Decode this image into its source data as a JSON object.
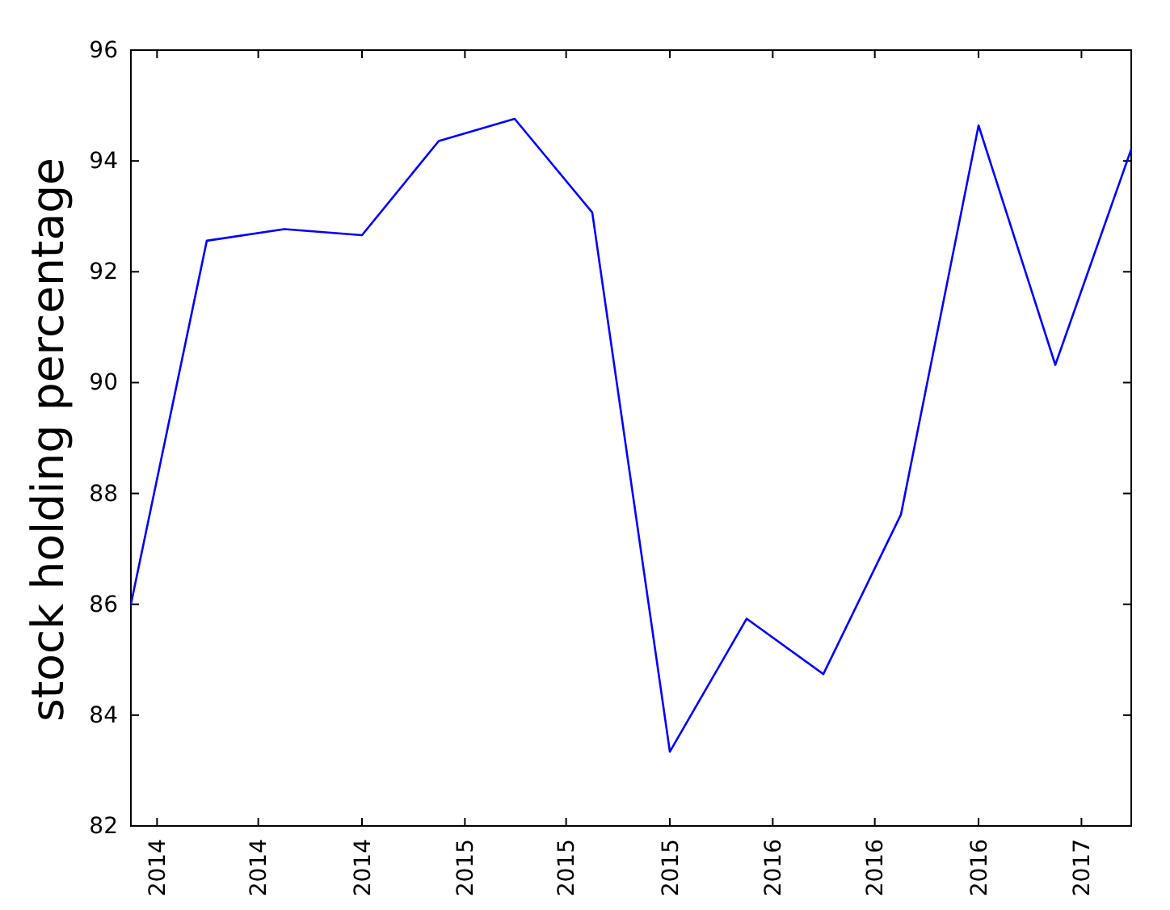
{
  "chart_data": {
    "type": "line",
    "ylabel": "stock holding percentage",
    "x": [
      "2013-12",
      "2014-03",
      "2014-06",
      "2014-09",
      "2014-12",
      "2015-03",
      "2015-06",
      "2015-09",
      "2015-12",
      "2016-03",
      "2016-06",
      "2016-09",
      "2016-12",
      "2017-03"
    ],
    "values": [
      86.0,
      92.56,
      92.77,
      92.66,
      94.36,
      94.76,
      93.07,
      83.34,
      85.74,
      84.74,
      87.62,
      94.64,
      90.32,
      94.21
    ],
    "color": "#0000ff",
    "xlim": [
      "2013-12",
      "2017-03"
    ],
    "xticks": [
      {
        "value": "2014-01",
        "label": "2014"
      },
      {
        "value": "2014-05",
        "label": "2014"
      },
      {
        "value": "2014-09",
        "label": "2014"
      },
      {
        "value": "2015-01",
        "label": "2015"
      },
      {
        "value": "2015-05",
        "label": "2015"
      },
      {
        "value": "2015-09",
        "label": "2015"
      },
      {
        "value": "2016-01",
        "label": "2016"
      },
      {
        "value": "2016-05",
        "label": "2016"
      },
      {
        "value": "2016-09",
        "label": "2016"
      },
      {
        "value": "2017-01",
        "label": "2017"
      }
    ],
    "ylim": [
      82,
      96
    ],
    "yticks": [
      82,
      84,
      86,
      88,
      90,
      92,
      94,
      96
    ]
  }
}
